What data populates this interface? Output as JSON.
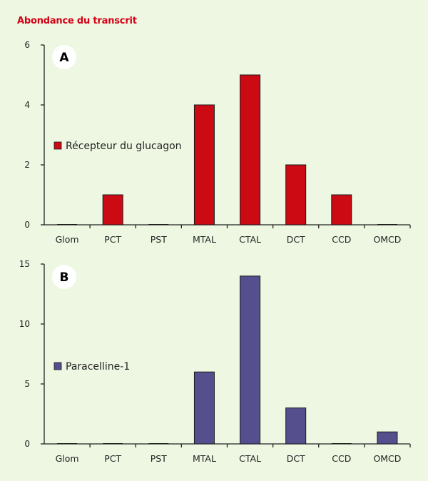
{
  "figure": {
    "ylabel": "Abondance du transcrit"
  },
  "chart_data": [
    {
      "type": "bar",
      "panel_label": "A",
      "categories": [
        "Glom",
        "PCT",
        "PST",
        "MTAL",
        "CTAL",
        "DCT",
        "CCD",
        "OMCD"
      ],
      "series": [
        {
          "name": "Récepteur du glucagon",
          "values": [
            0,
            1,
            0,
            4,
            5,
            2,
            1,
            0
          ],
          "color": "#cc0a14"
        }
      ],
      "ylim": [
        0,
        6
      ],
      "yticks": [
        0,
        2,
        4,
        6
      ],
      "grid": false,
      "legend": "middle-left"
    },
    {
      "type": "bar",
      "panel_label": "B",
      "categories": [
        "Glom",
        "PCT",
        "PST",
        "MTAL",
        "CTAL",
        "DCT",
        "CCD",
        "OMCD"
      ],
      "series": [
        {
          "name": "Paracelline-1",
          "values": [
            0,
            0,
            0,
            6,
            14,
            3,
            0,
            1
          ],
          "color": "#564f8e"
        }
      ],
      "ylim": [
        0,
        15
      ],
      "yticks": [
        0,
        5,
        10,
        15
      ],
      "grid": false,
      "legend": "middle-left"
    }
  ]
}
